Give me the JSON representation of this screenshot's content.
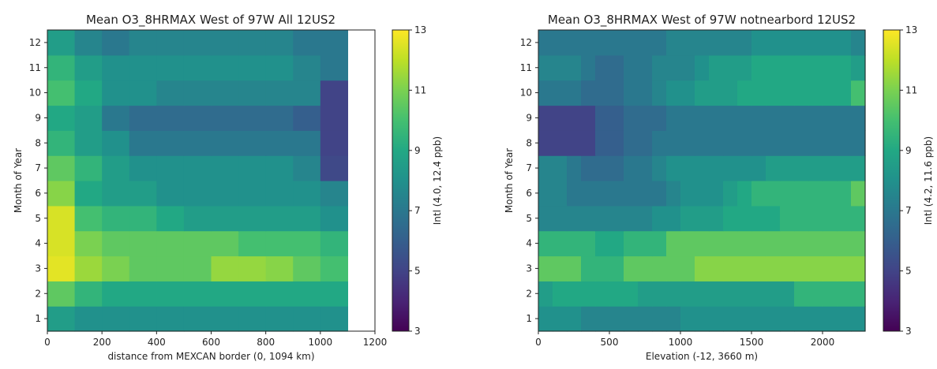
{
  "chart_data": [
    {
      "type": "heatmap",
      "title": "Mean O3_8HRMAX West of 97W All 12US2",
      "xlabel": "distance from MEXCAN border (0, 1094 km)",
      "ylabel": "Month of Year",
      "colorbar_label": "Intl (4.0, 12.4 ppb)",
      "xlim": [
        0,
        1200
      ],
      "ylim": [
        0.5,
        12.5
      ],
      "xticks": [
        "0",
        "200",
        "400",
        "600",
        "800",
        "1000",
        "1200"
      ],
      "yticks": [
        "1",
        "2",
        "3",
        "4",
        "5",
        "6",
        "7",
        "8",
        "9",
        "10",
        "11",
        "12"
      ],
      "colorbar_range": [
        3,
        13
      ],
      "colorbar_ticks": [
        "3",
        "5",
        "7",
        "9",
        "11",
        "13"
      ],
      "x_edges": [
        0,
        100,
        200,
        300,
        400,
        500,
        600,
        700,
        800,
        900,
        1000,
        1100
      ],
      "y_edges": [
        0.5,
        1.5,
        2.5,
        3.5,
        4.5,
        5.5,
        6.5,
        7.5,
        8.5,
        9.5,
        10.5,
        11.5,
        12.5
      ],
      "z": [
        [
          8.5,
          8.0,
          8.0,
          8.0,
          8.0,
          8.0,
          8.0,
          8.0,
          8.0,
          8.0,
          8.0
        ],
        [
          10.5,
          9.5,
          9.0,
          9.0,
          9.0,
          9.0,
          9.0,
          9.0,
          9.0,
          9.0,
          9.0
        ],
        [
          12.6,
          11.5,
          11.0,
          10.5,
          10.5,
          10.5,
          11.4,
          11.4,
          11.2,
          10.5,
          10.0
        ],
        [
          12.4,
          11.0,
          10.5,
          10.5,
          10.5,
          10.5,
          10.5,
          10.0,
          10.0,
          10.0,
          9.5
        ],
        [
          12.4,
          10.0,
          9.5,
          9.5,
          9.0,
          8.5,
          8.5,
          8.5,
          8.5,
          8.5,
          8.0
        ],
        [
          11.2,
          9.0,
          8.5,
          8.5,
          8.0,
          8.0,
          8.0,
          8.0,
          8.0,
          8.0,
          7.5
        ],
        [
          10.5,
          9.5,
          8.5,
          8.0,
          8.0,
          8.0,
          8.0,
          8.0,
          8.0,
          7.5,
          5.2
        ],
        [
          9.5,
          8.5,
          8.0,
          7.0,
          7.0,
          7.0,
          7.0,
          7.0,
          7.0,
          7.0,
          5.0
        ],
        [
          9.0,
          8.5,
          7.0,
          6.5,
          6.5,
          6.5,
          6.5,
          6.5,
          6.5,
          6.0,
          5.0
        ],
        [
          10.0,
          9.0,
          8.0,
          8.0,
          7.5,
          7.5,
          7.5,
          7.5,
          7.5,
          7.5,
          5.0
        ],
        [
          9.5,
          8.5,
          8.0,
          8.0,
          8.0,
          8.0,
          8.0,
          8.0,
          8.0,
          7.5,
          7.0
        ],
        [
          8.5,
          7.5,
          7.0,
          7.5,
          7.5,
          7.5,
          7.5,
          7.5,
          7.5,
          7.0,
          7.0
        ]
      ]
    },
    {
      "type": "heatmap",
      "title": "Mean O3_8HRMAX West of 97W notnearbord 12US2",
      "xlabel": "Elevation (-12, 3660 m)",
      "ylabel": "Month of Year",
      "colorbar_label": "Intl (4.2, 11.6 ppb)",
      "xlim": [
        0,
        2300
      ],
      "ylim": [
        0.5,
        12.5
      ],
      "xticks": [
        "0",
        "500",
        "1000",
        "1500",
        "2000"
      ],
      "yticks": [
        "1",
        "2",
        "3",
        "4",
        "5",
        "6",
        "7",
        "8",
        "9",
        "10",
        "11",
        "12"
      ],
      "colorbar_range": [
        3,
        13
      ],
      "colorbar_ticks": [
        "3",
        "5",
        "7",
        "9",
        "11",
        "13"
      ],
      "x_edges": [
        0,
        100,
        200,
        300,
        400,
        500,
        600,
        700,
        800,
        900,
        1000,
        1100,
        1200,
        1300,
        1400,
        1500,
        1600,
        1700,
        1800,
        1900,
        2000,
        2100,
        2200,
        2300
      ],
      "y_edges": [
        0.5,
        1.5,
        2.5,
        3.5,
        4.5,
        5.5,
        6.5,
        7.5,
        8.5,
        9.5,
        10.5,
        11.5,
        12.5
      ],
      "z": [
        [
          8.0,
          8.0,
          8.0,
          7.5,
          7.5,
          7.5,
          7.5,
          7.5,
          7.5,
          7.5,
          8.0,
          8.0,
          8.0,
          8.0,
          8.0,
          8.0,
          8.0,
          8.0,
          8.0,
          8.0,
          8.0,
          8.0,
          8.0
        ],
        [
          8.5,
          9.0,
          9.0,
          9.0,
          9.0,
          9.0,
          9.0,
          8.5,
          8.5,
          8.5,
          8.5,
          8.5,
          8.5,
          8.5,
          8.5,
          8.5,
          8.5,
          8.5,
          9.5,
          9.5,
          9.5,
          9.5,
          9.5
        ],
        [
          10.5,
          10.5,
          10.5,
          9.5,
          9.5,
          9.5,
          10.5,
          10.5,
          10.5,
          10.5,
          10.5,
          11.2,
          11.2,
          11.2,
          11.2,
          11.2,
          11.2,
          11.2,
          11.2,
          11.2,
          11.2,
          11.2,
          11.2
        ],
        [
          9.5,
          9.5,
          9.5,
          9.5,
          9.0,
          9.0,
          9.5,
          9.5,
          9.5,
          10.5,
          10.5,
          10.5,
          10.5,
          10.5,
          10.5,
          10.5,
          10.5,
          10.5,
          10.5,
          10.5,
          10.5,
          10.5,
          10.5
        ],
        [
          7.5,
          7.5,
          7.5,
          7.5,
          7.5,
          7.5,
          7.5,
          7.5,
          8.0,
          8.0,
          8.5,
          8.5,
          8.5,
          9.0,
          9.0,
          9.0,
          9.0,
          9.5,
          9.5,
          9.5,
          9.5,
          9.5,
          9.5
        ],
        [
          7.5,
          7.5,
          7.0,
          7.0,
          7.0,
          7.0,
          7.0,
          7.0,
          7.0,
          7.5,
          8.0,
          8.0,
          8.0,
          8.5,
          9.0,
          9.5,
          9.5,
          9.5,
          9.5,
          9.5,
          9.5,
          9.5,
          10.5
        ],
        [
          7.5,
          7.5,
          7.0,
          6.5,
          6.5,
          6.5,
          7.0,
          7.0,
          7.5,
          8.0,
          8.0,
          8.0,
          8.0,
          8.0,
          8.0,
          8.0,
          8.5,
          8.5,
          8.5,
          8.5,
          8.5,
          8.5,
          8.5
        ],
        [
          5.0,
          5.0,
          5.0,
          5.0,
          6.0,
          6.0,
          6.5,
          6.5,
          7.0,
          7.0,
          7.0,
          7.0,
          7.0,
          7.0,
          7.0,
          7.0,
          7.0,
          7.0,
          7.0,
          7.0,
          7.0,
          7.0,
          7.0
        ],
        [
          5.0,
          5.0,
          5.0,
          5.0,
          6.0,
          6.0,
          6.5,
          6.5,
          6.5,
          7.0,
          7.0,
          7.0,
          7.0,
          7.0,
          7.0,
          7.0,
          7.0,
          7.0,
          7.0,
          7.0,
          7.0,
          7.0,
          7.0
        ],
        [
          7.0,
          7.0,
          7.0,
          6.5,
          6.5,
          6.5,
          7.0,
          7.0,
          7.5,
          8.0,
          8.0,
          8.5,
          8.5,
          8.5,
          9.0,
          9.0,
          9.0,
          9.0,
          9.0,
          9.0,
          9.0,
          9.0,
          10.0
        ],
        [
          7.5,
          7.5,
          7.5,
          7.0,
          6.5,
          6.5,
          7.0,
          7.0,
          7.5,
          7.5,
          7.5,
          8.0,
          8.5,
          8.5,
          8.5,
          9.0,
          9.0,
          9.0,
          9.0,
          9.0,
          9.0,
          9.0,
          8.5
        ],
        [
          7.0,
          7.0,
          7.0,
          7.0,
          7.0,
          7.0,
          7.0,
          7.0,
          7.0,
          7.5,
          7.5,
          7.5,
          7.5,
          7.5,
          7.5,
          8.0,
          8.0,
          8.0,
          8.0,
          8.0,
          8.0,
          8.0,
          7.5
        ]
      ]
    }
  ]
}
